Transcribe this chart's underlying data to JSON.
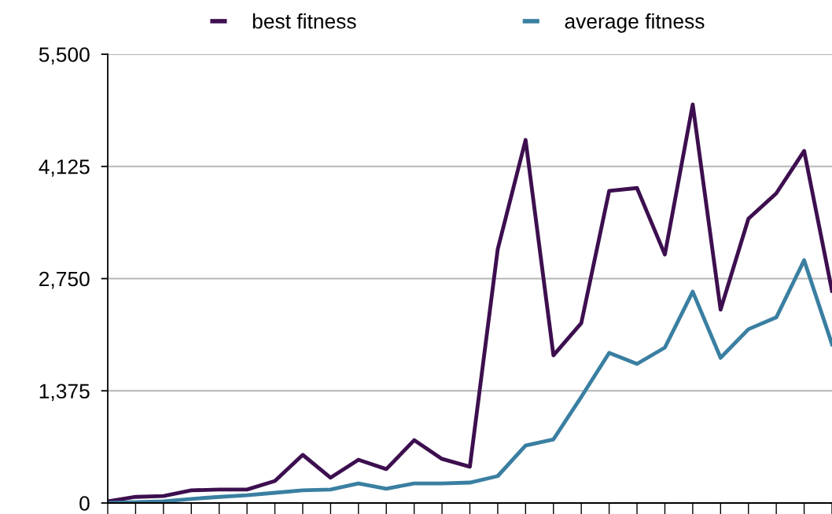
{
  "chart_data": {
    "type": "line",
    "categories": [
      null,
      null,
      null,
      null,
      null,
      null,
      null,
      null,
      null,
      null,
      null,
      null,
      null,
      null,
      null,
      null,
      null,
      null,
      null,
      null,
      null,
      null,
      null,
      null,
      null,
      null,
      null
    ],
    "series": [
      {
        "name": "best fitness",
        "color": "#3d0f4f",
        "values": [
          20,
          75,
          85,
          155,
          165,
          165,
          270,
          590,
          310,
          530,
          415,
          770,
          540,
          445,
          3110,
          4450,
          1810,
          2205,
          3825,
          3860,
          3045,
          4885,
          2370,
          3485,
          3795,
          4315,
          2600
        ]
      },
      {
        "name": "average fitness",
        "color": "#3a7fa1",
        "values": [
          0,
          10,
          20,
          50,
          75,
          95,
          125,
          155,
          165,
          240,
          175,
          240,
          240,
          250,
          330,
          705,
          780,
          1300,
          1840,
          1705,
          1905,
          2590,
          1780,
          2130,
          2275,
          2975,
          1945
        ]
      }
    ],
    "ylim": [
      0,
      5500
    ],
    "yticks": [
      0,
      {
        "value": 1375,
        "label": "1,375"
      },
      {
        "value": 2750,
        "label": "2,750"
      },
      {
        "value": 4125,
        "label": "4,125"
      },
      {
        "value": 5500,
        "label": "5,500"
      }
    ],
    "grid": "y",
    "legend": "top",
    "tick_labels": "y",
    "marker": "none",
    "line_style": "solid"
  }
}
